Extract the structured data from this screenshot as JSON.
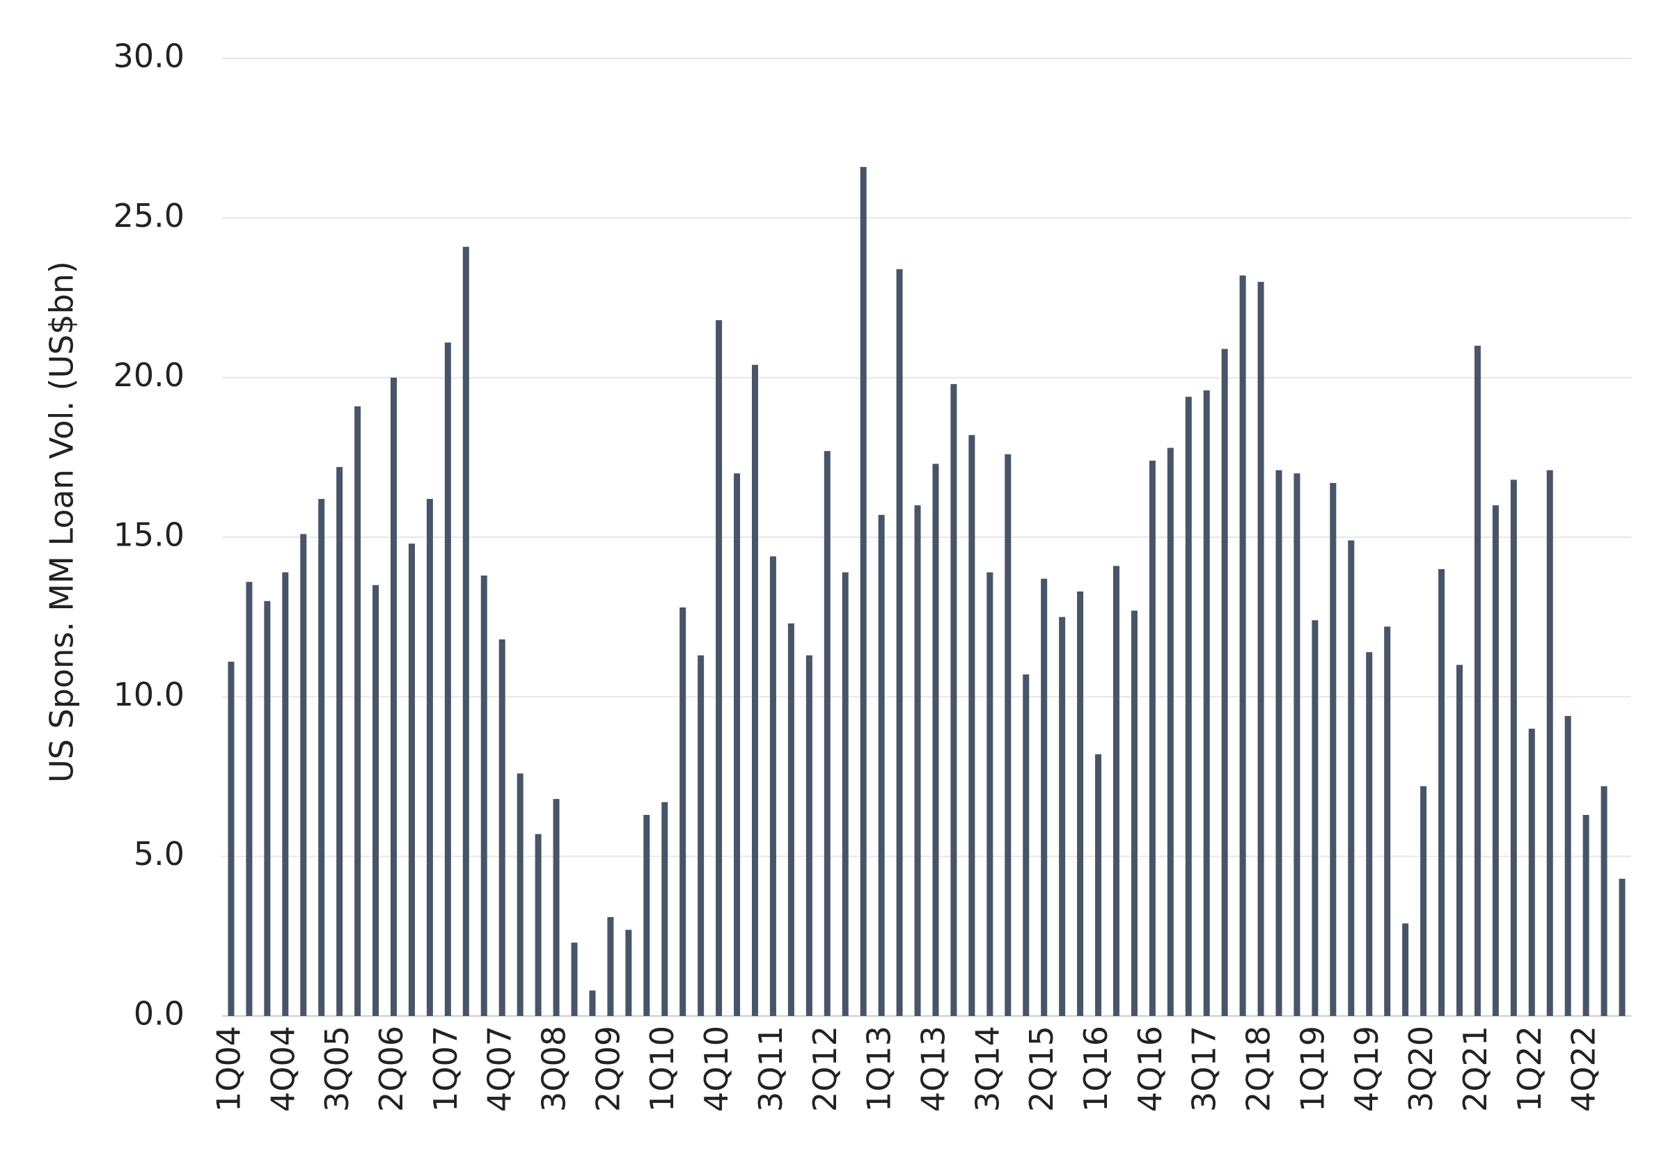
{
  "chart_data": {
    "type": "bar",
    "ylabel": "US Spons. MM Loan Vol. (US$bn)",
    "categories": [
      "1Q04",
      null,
      null,
      "4Q04",
      null,
      null,
      "3Q05",
      null,
      null,
      "2Q06",
      null,
      null,
      "1Q07",
      null,
      null,
      "4Q07",
      null,
      null,
      "3Q08",
      null,
      null,
      "2Q09",
      null,
      null,
      "1Q10",
      null,
      null,
      "4Q10",
      null,
      null,
      "3Q11",
      null,
      null,
      "2Q12",
      null,
      null,
      "1Q13",
      null,
      null,
      "4Q13",
      null,
      null,
      "3Q14",
      null,
      null,
      "2Q15",
      null,
      null,
      "1Q16",
      null,
      null,
      "4Q16",
      null,
      null,
      "3Q17",
      null,
      null,
      "2Q18",
      null,
      null,
      "1Q19",
      null,
      null,
      "4Q19",
      null,
      null,
      "3Q20",
      null,
      null,
      "2Q21",
      null,
      null,
      "1Q22",
      null,
      null,
      "4Q22",
      null,
      null
    ],
    "values": [
      11.1,
      13.6,
      13.0,
      13.9,
      15.1,
      16.2,
      17.2,
      19.1,
      13.5,
      20.0,
      14.8,
      16.2,
      21.1,
      24.1,
      13.8,
      11.8,
      7.6,
      5.7,
      6.8,
      2.3,
      0.8,
      3.1,
      2.7,
      6.3,
      6.7,
      12.8,
      11.3,
      21.8,
      17.0,
      20.4,
      14.4,
      12.3,
      11.3,
      17.7,
      13.9,
      26.6,
      15.7,
      23.4,
      16.0,
      17.3,
      19.8,
      18.2,
      13.9,
      17.6,
      10.7,
      13.7,
      12.5,
      13.3,
      8.2,
      14.1,
      12.7,
      17.4,
      17.8,
      19.4,
      19.6,
      20.9,
      23.2,
      23.0,
      17.1,
      17.0,
      12.4,
      16.7,
      14.9,
      11.4,
      12.2,
      2.9,
      7.2,
      14.0,
      11.0,
      21.0,
      16.0,
      16.8,
      9.0,
      17.1,
      9.4,
      6.3,
      7.2,
      4.3
    ],
    "color": "#485568",
    "ylim": [
      0,
      30
    ],
    "yticks": [
      {
        "value": 0,
        "label": "0.0"
      },
      {
        "value": 5,
        "label": "5.0"
      },
      {
        "value": 10,
        "label": "10.0"
      },
      {
        "value": 15,
        "label": "15.0"
      },
      {
        "value": 20,
        "label": "20.0"
      },
      {
        "value": 25,
        "label": "25.0"
      },
      {
        "value": 30,
        "label": "30.0"
      }
    ],
    "grid": true
  }
}
